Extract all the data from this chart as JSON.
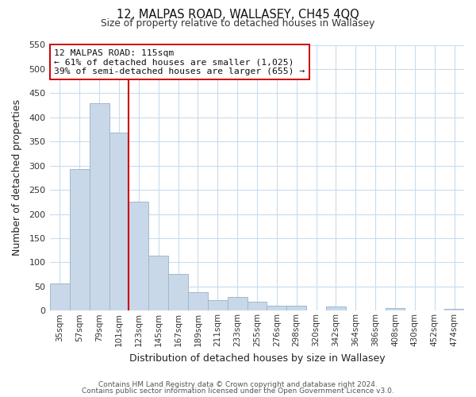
{
  "title": "12, MALPAS ROAD, WALLASEY, CH45 4QQ",
  "subtitle": "Size of property relative to detached houses in Wallasey",
  "xlabel": "Distribution of detached houses by size in Wallasey",
  "ylabel": "Number of detached properties",
  "bar_labels": [
    "35sqm",
    "57sqm",
    "79sqm",
    "101sqm",
    "123sqm",
    "145sqm",
    "167sqm",
    "189sqm",
    "211sqm",
    "233sqm",
    "255sqm",
    "276sqm",
    "298sqm",
    "320sqm",
    "342sqm",
    "364sqm",
    "386sqm",
    "408sqm",
    "430sqm",
    "452sqm",
    "474sqm"
  ],
  "bar_values": [
    57,
    293,
    430,
    368,
    225,
    113,
    76,
    38,
    22,
    29,
    18,
    10,
    11,
    0,
    9,
    0,
    0,
    5,
    0,
    0,
    4
  ],
  "bar_color": "#c8d8e8",
  "bar_edge_color": "#a0b8cc",
  "ylim": [
    0,
    550
  ],
  "yticks": [
    0,
    50,
    100,
    150,
    200,
    250,
    300,
    350,
    400,
    450,
    500,
    550
  ],
  "property_line_color": "#cc0000",
  "annotation_title": "12 MALPAS ROAD: 115sqm",
  "annotation_line1": "← 61% of detached houses are smaller (1,025)",
  "annotation_line2": "39% of semi-detached houses are larger (655) →",
  "annotation_box_color": "#ffffff",
  "annotation_box_edge": "#cc0000",
  "footer1": "Contains HM Land Registry data © Crown copyright and database right 2024.",
  "footer2": "Contains public sector information licensed under the Open Government Licence v3.0.",
  "background_color": "#ffffff",
  "grid_color": "#c8dcee"
}
